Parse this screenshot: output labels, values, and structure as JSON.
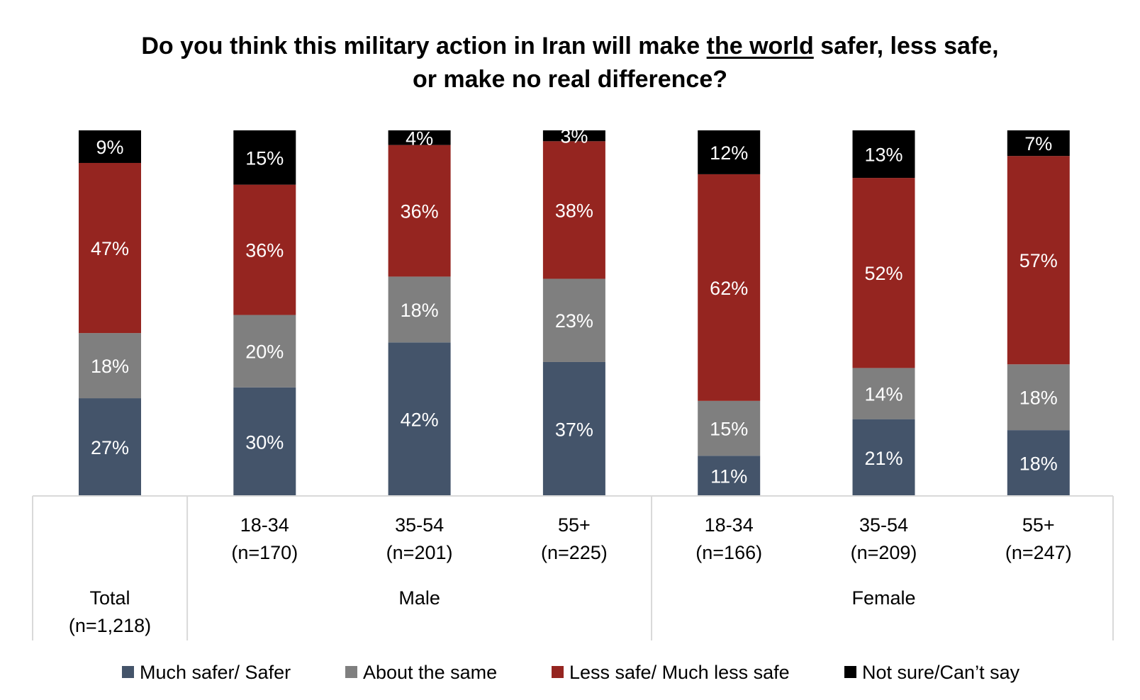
{
  "chart_data": {
    "type": "bar",
    "stacked": true,
    "title": {
      "line1_prefix": "Do you think this military action in Iran will make ",
      "line1_underlined": "the world",
      "line1_suffix": " safer, less safe,",
      "line2": "or make no real difference?"
    },
    "categories": [
      {
        "label": "",
        "n": ""
      },
      {
        "label": "18-34",
        "n": "(n=170)"
      },
      {
        "label": "35-54",
        "n": "(n=201)"
      },
      {
        "label": "55+",
        "n": "(n=225)"
      },
      {
        "label": "18-34",
        "n": "(n=166)"
      },
      {
        "label": "35-54",
        "n": "(n=209)"
      },
      {
        "label": "55+",
        "n": "(n=247)"
      }
    ],
    "groups": [
      {
        "label": "Total",
        "sublabel": "(n=1,218)",
        "span": [
          0,
          0
        ]
      },
      {
        "label": "Male",
        "sublabel": "",
        "span": [
          1,
          3
        ]
      },
      {
        "label": "Female",
        "sublabel": "",
        "span": [
          4,
          6
        ]
      }
    ],
    "series": [
      {
        "name": "Much safer/ Safer",
        "color": "#44546a",
        "values": [
          27,
          30,
          42,
          37,
          11,
          21,
          18
        ]
      },
      {
        "name": "About the same",
        "color": "#7f7f7f",
        "values": [
          18,
          20,
          18,
          23,
          15,
          14,
          18
        ]
      },
      {
        "name": "Less safe/ Much less safe",
        "color": "#952520",
        "values": [
          47,
          36,
          36,
          38,
          62,
          52,
          57
        ]
      },
      {
        "name": "Not sure/Can’t say",
        "color": "#000000",
        "values": [
          9,
          15,
          4,
          3,
          12,
          13,
          7
        ]
      }
    ],
    "value_suffix": "%",
    "legend": {
      "position": "bottom"
    },
    "grid": false
  }
}
